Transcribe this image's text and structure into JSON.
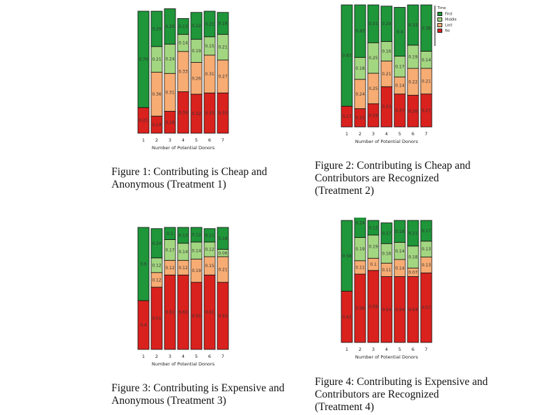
{
  "colors": {
    "First": "#1e9639",
    "Middle": "#a3d681",
    "Last": "#f7ac73",
    "No": "#d9211e"
  },
  "legend": {
    "title": "Time",
    "items": [
      "First",
      "Middle",
      "Last",
      "No"
    ]
  },
  "chart_data": [
    {
      "type": "bar",
      "stacked": true,
      "xlabel": "Number of Potential Donors",
      "categories": [
        "1",
        "2",
        "3",
        "4",
        "5",
        "6",
        "7"
      ],
      "series": [
        {
          "name": "No",
          "values": [
            0.21,
            0.14,
            0.18,
            0.34,
            0.32,
            0.33,
            0.33
          ],
          "labels": [
            "0.21",
            "0.14",
            "0.18",
            "0.34",
            "0.32",
            "0.33",
            "0.33"
          ]
        },
        {
          "name": "Last",
          "values": [
            0,
            0.36,
            0.31,
            0.33,
            0.26,
            0.31,
            0.27
          ],
          "labels": [
            "",
            "0.36",
            "0.31",
            "0.33",
            "0.26",
            "0.31",
            "0.27"
          ]
        },
        {
          "name": "Middle",
          "values": [
            0,
            0.21,
            0.24,
            0.14,
            0.19,
            0.15,
            0.21
          ],
          "labels": [
            "",
            "0.21",
            "0.24",
            "0.14",
            "0.19",
            "0.15",
            "0.21"
          ]
        },
        {
          "name": "First",
          "values": [
            0.79,
            0.29,
            0.29,
            0.13,
            0.22,
            0.21,
            0.18
          ],
          "labels": [
            "0.79",
            "0.29",
            "0.29",
            "0.13",
            "0.22",
            "0.21",
            "0.18"
          ]
        }
      ],
      "caption": "Figure 1: Contributing is Cheap and Anonymous (Treatment 1)"
    },
    {
      "type": "bar",
      "stacked": true,
      "xlabel": "Number of Potential Donors",
      "categories": [
        "1",
        "2",
        "3",
        "4",
        "5",
        "6",
        "7"
      ],
      "series": [
        {
          "name": "No",
          "values": [
            0.17,
            0.15,
            0.19,
            0.33,
            0.27,
            0.26,
            0.27
          ],
          "labels": [
            "0.17",
            "0.15",
            "0.19",
            "0.33",
            "0.27",
            "0.26",
            "0.27"
          ]
        },
        {
          "name": "Last",
          "values": [
            0,
            0.24,
            0.25,
            0.21,
            0.14,
            0.22,
            0.21
          ],
          "labels": [
            "",
            "0.24",
            "0.25",
            "0.21",
            "0.14",
            "0.22",
            "0.21"
          ]
        },
        {
          "name": "Middle",
          "values": [
            0,
            0.18,
            0.25,
            0.16,
            0.17,
            0.19,
            0.14
          ],
          "labels": [
            "",
            "0.18",
            "0.25",
            "0.16",
            "0.17",
            "0.19",
            "0.14"
          ]
        },
        {
          "name": "First",
          "values": [
            0.83,
            0.43,
            0.31,
            0.29,
            0.4,
            0.33,
            0.38
          ],
          "labels": [
            "0.83",
            "0.43",
            "0.31",
            "0.29",
            "0.4",
            "0.33",
            "0.38"
          ]
        }
      ],
      "caption": "Figure 2: Contributing is Cheap and Contributors are Recognized (Treatment 2)"
    },
    {
      "type": "bar",
      "stacked": true,
      "xlabel": "Number of Potential Donors",
      "categories": [
        "1",
        "2",
        "3",
        "4",
        "5",
        "6",
        "7"
      ],
      "series": [
        {
          "name": "No",
          "values": [
            0.4,
            0.51,
            0.61,
            0.61,
            0.55,
            0.61,
            0.55
          ],
          "labels": [
            "0.4",
            "0.51",
            "0.61",
            "0.61",
            "0.55",
            "0.61",
            "0.55"
          ]
        },
        {
          "name": "Last",
          "values": [
            0,
            0.12,
            0.12,
            0.12,
            0.19,
            0.15,
            0.21
          ],
          "labels": [
            "",
            "0.12",
            "0.12",
            "0.12",
            "0.19",
            "0.15",
            "0.21"
          ]
        },
        {
          "name": "Middle",
          "values": [
            0,
            0.12,
            0.17,
            0.14,
            0.14,
            0.12,
            0.06
          ],
          "labels": [
            "",
            "0.12",
            "0.17",
            "0.14",
            "0.14",
            "0.12",
            "0.06"
          ]
        },
        {
          "name": "First",
          "values": [
            0.6,
            0.24,
            0.1,
            0.13,
            0.12,
            0.11,
            0.18
          ],
          "labels": [
            "0.6",
            "0.24",
            "0.1",
            "0.13",
            "0.12",
            "0.11",
            "0.18"
          ]
        }
      ],
      "caption": "Figure 3: Contributing is Expensive and Anonymous (Treatment 3)"
    },
    {
      "type": "bar",
      "stacked": true,
      "xlabel": "Number of Potential Donors",
      "categories": [
        "1",
        "2",
        "3",
        "4",
        "5",
        "6",
        "7"
      ],
      "series": [
        {
          "name": "No",
          "values": [
            0.42,
            0.56,
            0.59,
            0.54,
            0.54,
            0.54,
            0.57
          ],
          "labels": [
            "0.42",
            "0.56",
            "0.59",
            "0.54",
            "0.54",
            "0.54",
            "0.57"
          ]
        },
        {
          "name": "Last",
          "values": [
            0,
            0.11,
            0.1,
            0.11,
            0.14,
            0.07,
            0.13
          ],
          "labels": [
            "",
            "0.11",
            "0.1",
            "0.11",
            "0.14",
            "0.07",
            "0.13"
          ]
        },
        {
          "name": "Middle",
          "values": [
            0,
            0.19,
            0.19,
            0.16,
            0.14,
            0.18,
            0.13
          ],
          "labels": [
            "",
            "0.19",
            "0.19",
            "0.16",
            "0.14",
            "0.18",
            "0.13"
          ]
        },
        {
          "name": "First",
          "values": [
            0.58,
            0.24,
            0.12,
            0.17,
            0.18,
            0.21,
            0.17
          ],
          "labels": [
            "0.58",
            "0.24",
            "0.12",
            "0.17",
            "0.18",
            "0.21",
            "0.17"
          ]
        }
      ],
      "caption": "Figure 4: Contributing is Expensive and Contributors are Recognized (Treatment 4)"
    }
  ]
}
